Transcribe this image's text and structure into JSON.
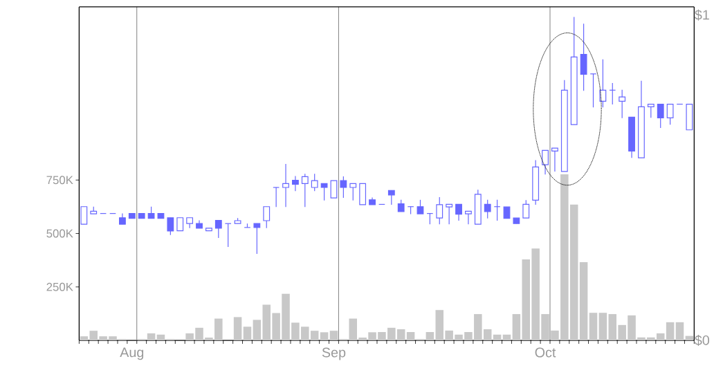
{
  "chart_data": {
    "type": "candlestick",
    "categories": [
      null,
      null,
      null,
      null,
      null,
      "Aug",
      null,
      null,
      null,
      null,
      null,
      null,
      null,
      null,
      null,
      null,
      null,
      null,
      null,
      null,
      null,
      null,
      null,
      null,
      null,
      null,
      "Sep",
      null,
      null,
      null,
      null,
      null,
      null,
      null,
      null,
      null,
      null,
      null,
      null,
      null,
      null,
      null,
      null,
      null,
      null,
      null,
      null,
      null,
      "Oct",
      null,
      null,
      null,
      null,
      null,
      null,
      null,
      null,
      null,
      null,
      null,
      null,
      null,
      null,
      null
    ],
    "grid": "x",
    "ylim": [
      0,
      1560000
    ],
    "yticks": [
      {
        "value": 250000,
        "label": "250K"
      },
      {
        "value": 500000,
        "label": "500K"
      },
      {
        "value": 750000,
        "label": "750K"
      }
    ],
    "y2lim": [
      0,
      1.025
    ],
    "y2ticks": [
      {
        "value": 0,
        "label": "$0"
      },
      {
        "value": 1,
        "label": "$1"
      }
    ],
    "series": [
      {
        "type": "bar",
        "color": "#c8c8c8",
        "values": [
          19000,
          45000,
          19000,
          19000,
          6000,
          null,
          6000,
          33000,
          27000,
          6000,
          null,
          33000,
          59000,
          13000,
          102000,
          null,
          109000,
          64000,
          96000,
          167000,
          128000,
          218000,
          83000,
          64000,
          45000,
          38000,
          45000,
          6000,
          102000,
          13000,
          38000,
          39000,
          59000,
          52000,
          39000,
          6000,
          39000,
          142000,
          46000,
          27000,
          39000,
          123000,
          52000,
          27000,
          27000,
          123000,
          379000,
          430000,
          123000,
          46000,
          777000,
          635000,
          366000,
          129000,
          129000,
          123000,
          72000,
          117000,
          14000,
          14000,
          33000,
          85000,
          85000,
          21000
        ]
      },
      {
        "axis": "y2",
        "color": "#6666ff",
        "ohlc": [
          [
            0.357,
            0.411,
            0.357,
            0.411
          ],
          [
            0.389,
            0.411,
            0.389,
            0.397
          ],
          [
            0.39,
            0.39,
            0.39,
            0.39
          ],
          [
            0.39,
            0.39,
            0.39,
            0.39
          ],
          [
            0.377,
            0.39,
            0.357,
            0.357
          ],
          [
            0.39,
            0.39,
            0.375,
            0.375
          ],
          [
            0.39,
            0.39,
            0.375,
            0.375
          ],
          [
            0.39,
            0.411,
            0.375,
            0.375
          ],
          [
            0.39,
            0.39,
            0.375,
            0.375
          ],
          [
            0.377,
            0.377,
            0.324,
            0.336
          ],
          [
            0.337,
            0.377,
            0.337,
            0.377
          ],
          [
            0.359,
            0.377,
            0.345,
            0.377
          ],
          [
            0.359,
            0.369,
            0.345,
            0.345
          ],
          [
            0.337,
            0.345,
            0.337,
            0.345
          ],
          [
            0.369,
            0.369,
            0.315,
            0.345
          ],
          [
            0.359,
            0.359,
            0.287,
            0.359
          ],
          [
            0.359,
            0.376,
            0.359,
            0.368
          ],
          [
            0.347,
            0.359,
            0.347,
            0.347
          ],
          [
            0.359,
            0.359,
            0.266,
            0.347
          ],
          [
            0.368,
            0.411,
            0.345,
            0.411
          ],
          [
            0.47,
            0.47,
            0.41,
            0.47
          ],
          [
            0.47,
            0.542,
            0.41,
            0.482
          ],
          [
            0.492,
            0.505,
            0.459,
            0.48
          ],
          [
            0.482,
            0.512,
            0.41,
            0.503
          ],
          [
            0.47,
            0.512,
            0.459,
            0.491
          ],
          [
            0.482,
            0.482,
            0.43,
            0.47
          ],
          [
            0.438,
            0.491,
            0.438,
            0.491
          ],
          [
            0.491,
            0.504,
            0.438,
            0.47
          ],
          [
            0.47,
            0.482,
            0.43,
            0.482
          ],
          [
            0.417,
            0.482,
            0.417,
            0.482
          ],
          [
            0.432,
            0.439,
            0.417,
            0.417
          ],
          [
            0.418,
            0.418,
            0.418,
            0.418
          ],
          [
            0.461,
            0.461,
            0.417,
            0.447
          ],
          [
            0.42,
            0.432,
            0.396,
            0.396
          ],
          [
            0.411,
            0.411,
            0.388,
            0.411
          ],
          [
            0.411,
            0.432,
            0.389,
            0.389
          ],
          [
            0.39,
            0.39,
            0.357,
            0.39
          ],
          [
            0.376,
            0.44,
            0.357,
            0.417
          ],
          [
            0.41,
            0.418,
            0.357,
            0.418
          ],
          [
            0.418,
            0.418,
            0.368,
            0.388
          ],
          [
            0.389,
            0.397,
            0.357,
            0.397
          ],
          [
            0.357,
            0.463,
            0.357,
            0.449
          ],
          [
            0.418,
            0.432,
            0.375,
            0.396
          ],
          [
            0.411,
            0.432,
            0.368,
            0.411
          ],
          [
            0.41,
            0.41,
            0.375,
            0.375
          ],
          [
            0.376,
            0.376,
            0.359,
            0.359
          ],
          [
            0.376,
            0.431,
            0.376,
            0.418
          ],
          [
            0.431,
            0.554,
            0.417,
            0.533
          ],
          [
            0.54,
            0.584,
            0.51,
            0.584
          ],
          [
            0.582,
            0.591,
            0.519,
            0.591
          ],
          [
            0.519,
            0.8,
            0.519,
            0.769
          ],
          [
            0.663,
            0.994,
            0.663,
            0.871
          ],
          [
            0.879,
            0.973,
            0.767,
            0.818
          ],
          [
            0.819,
            0.819,
            0.716,
            0.819
          ],
          [
            0.735,
            0.864,
            0.716,
            0.769
          ],
          [
            0.769,
            0.791,
            0.725,
            0.769
          ],
          [
            0.735,
            0.77,
            0.683,
            0.748
          ],
          [
            0.686,
            0.686,
            0.561,
            0.582
          ],
          [
            0.561,
            0.798,
            0.561,
            0.718
          ],
          [
            0.718,
            0.726,
            0.684,
            0.726
          ],
          [
            0.726,
            0.726,
            0.653,
            0.684
          ],
          [
            0.684,
            0.726,
            0.663,
            0.726
          ],
          [
            0.726,
            0.726,
            0.726,
            0.726
          ],
          [
            0.647,
            0.726,
            0.647,
            0.726
          ]
        ]
      }
    ]
  }
}
